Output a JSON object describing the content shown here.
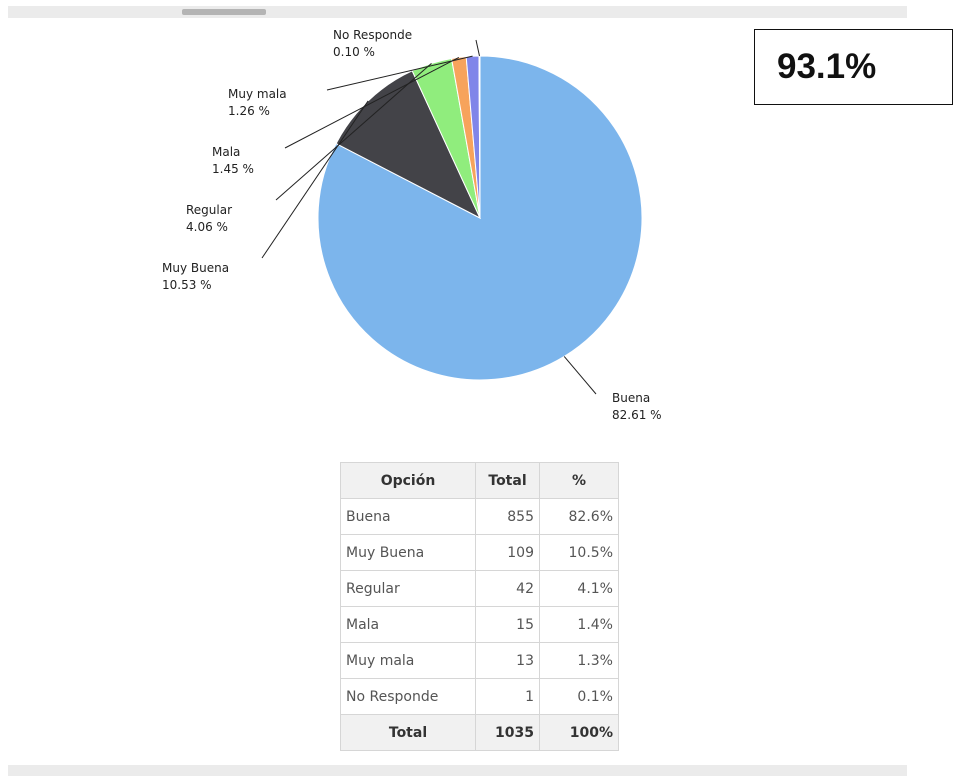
{
  "highlight": "93.1%",
  "chart_data": {
    "type": "pie",
    "slices": [
      {
        "label": "Buena",
        "value": 82.61,
        "display": "82.61 %",
        "color": "#7cb5ec"
      },
      {
        "label": "Muy Buena",
        "value": 10.53,
        "display": "10.53 %",
        "color": "#434348"
      },
      {
        "label": "Regular",
        "value": 4.06,
        "display": "4.06 %",
        "color": "#90ed7d"
      },
      {
        "label": "Mala",
        "value": 1.45,
        "display": "1.45 %",
        "color": "#f7a35c"
      },
      {
        "label": "Muy mala",
        "value": 1.26,
        "display": "1.26 %",
        "color": "#8085e9"
      },
      {
        "label": "No Responde",
        "value": 0.1,
        "display": "0.10 %",
        "color": "#f15c80"
      }
    ]
  },
  "table": {
    "headers": [
      "Opción",
      "Total",
      "%"
    ],
    "rows": [
      {
        "option": "Buena",
        "total": "855",
        "pct": "82.6%"
      },
      {
        "option": "Muy Buena",
        "total": "109",
        "pct": "10.5%"
      },
      {
        "option": "Regular",
        "total": "42",
        "pct": "4.1%"
      },
      {
        "option": "Mala",
        "total": "15",
        "pct": "1.4%"
      },
      {
        "option": "Muy mala",
        "total": "13",
        "pct": "1.3%"
      },
      {
        "option": "No Responde",
        "total": "1",
        "pct": "0.1%"
      }
    ],
    "footer": {
      "label": "Total",
      "total": "1035",
      "pct": "100%"
    }
  }
}
